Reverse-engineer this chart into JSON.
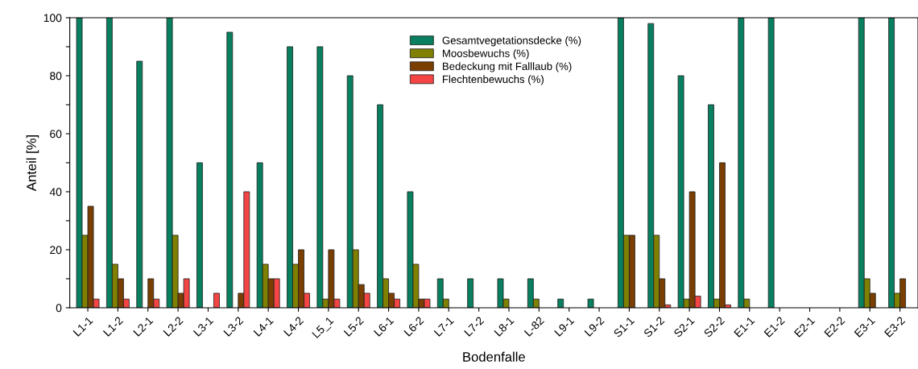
{
  "chart_data": {
    "type": "bar",
    "xlabel": "Bodenfalle",
    "ylabel": "Anteil [%]",
    "categories": [
      "L1-1",
      "L1-2",
      "L2-1",
      "L2-2",
      "L3-1",
      "L3-2",
      "L4-1",
      "L4-2",
      "L5_1",
      "L5-2",
      "L6-1",
      "L6-2",
      "L7-1",
      "L7-2",
      "L8-1",
      "L-82",
      "L9-1",
      "L9-2",
      "S1-1",
      "S1-2",
      "S2-1",
      "S2-2",
      "E1-1",
      "E1-2",
      "E2-1",
      "E2-2",
      "E3-1",
      "E3-2"
    ],
    "series": [
      {
        "name": "Gesamtvegetationsdecke (%)",
        "color": "#087f5f",
        "values": [
          100,
          100,
          85,
          100,
          50,
          95,
          50,
          90,
          90,
          80,
          70,
          40,
          10,
          10,
          10,
          10,
          3,
          3,
          100,
          98,
          80,
          70,
          100,
          100,
          0,
          0,
          100,
          100
        ]
      },
      {
        "name": "Moosbewuchs (%)",
        "color": "#808000",
        "values": [
          25,
          15,
          0,
          25,
          0,
          0,
          15,
          15,
          3,
          20,
          10,
          15,
          3,
          0,
          3,
          3,
          0,
          0,
          25,
          25,
          3,
          3,
          3,
          0,
          0,
          0,
          10,
          5
        ]
      },
      {
        "name": "Bedeckung mit Falllaub (%)",
        "color": "#7a3f00",
        "values": [
          35,
          10,
          10,
          5,
          0,
          5,
          10,
          20,
          20,
          8,
          5,
          3,
          0,
          0,
          0,
          0,
          0,
          0,
          25,
          10,
          40,
          50,
          0,
          0,
          0,
          0,
          5,
          10
        ]
      },
      {
        "name": "Flechtenbewuchs (%)",
        "color": "#f44444",
        "values": [
          3,
          3,
          3,
          10,
          5,
          40,
          10,
          5,
          3,
          5,
          3,
          3,
          0,
          0,
          0,
          0,
          0,
          0,
          0,
          1,
          4,
          1,
          0,
          0,
          0,
          0,
          0,
          0
        ]
      }
    ],
    "ylim": [
      0,
      100
    ],
    "yticks": [
      0,
      {
        "value": 10,
        "label": null
      },
      20,
      {
        "value": 30,
        "label": null
      },
      40,
      {
        "value": 50,
        "label": null
      },
      60,
      {
        "value": 70,
        "label": null
      },
      80,
      {
        "value": 90,
        "label": null
      },
      100
    ],
    "grid": false,
    "legend": "top"
  }
}
